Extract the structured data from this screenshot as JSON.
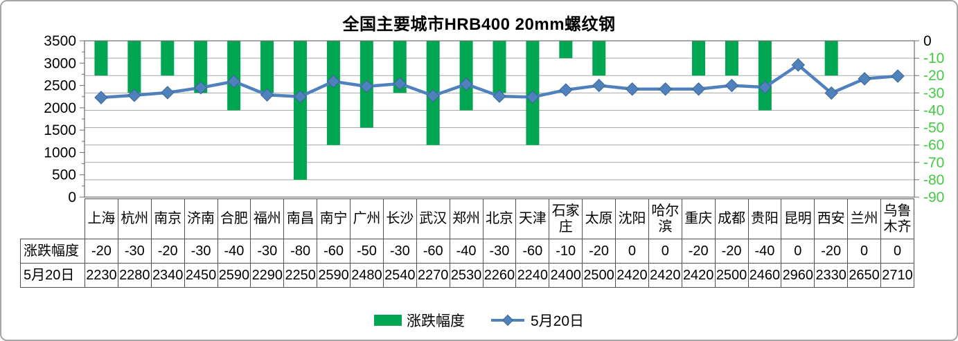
{
  "title": "全国主要城市HRB400 20mm螺纹钢",
  "chart_data": {
    "type": "combo-bar-line",
    "title": "全国主要城市HRB400 20mm螺纹钢",
    "categories": [
      "上海",
      "杭州",
      "南京",
      "济南",
      "合肥",
      "福州",
      "南昌",
      "南宁",
      "广州",
      "长沙",
      "武汉",
      "郑州",
      "北京",
      "天津",
      "石家庄",
      "太原",
      "沈阳",
      "哈尔滨",
      "重庆",
      "成都",
      "贵阳",
      "昆明",
      "西安",
      "兰州",
      "乌鲁木齐"
    ],
    "series": [
      {
        "name": "涨跌幅度",
        "type": "bar",
        "axis": "right",
        "color": "#00a651",
        "values": [
          -20,
          -30,
          -20,
          -30,
          -40,
          -30,
          -80,
          -60,
          -50,
          -30,
          -60,
          -40,
          -30,
          -60,
          -10,
          -20,
          0,
          0,
          -20,
          -20,
          -40,
          0,
          -20,
          0,
          0
        ]
      },
      {
        "name": "5月20日",
        "type": "line",
        "axis": "left",
        "color": "#4f81bd",
        "marker": "diamond",
        "values": [
          2230,
          2280,
          2340,
          2450,
          2590,
          2290,
          2250,
          2590,
          2480,
          2540,
          2270,
          2530,
          2260,
          2240,
          2400,
          2500,
          2420,
          2420,
          2420,
          2500,
          2460,
          2960,
          2330,
          2650,
          2710
        ]
      }
    ],
    "left_axis": {
      "min": 0,
      "max": 3500,
      "step": 500,
      "ticks": [
        "3500",
        "3000",
        "2500",
        "2000",
        "1500",
        "1000",
        "500",
        "0"
      ],
      "label_color": "#000000"
    },
    "right_axis": {
      "min": -90,
      "max": 0,
      "step": 10,
      "ticks": [
        "0",
        "-10",
        "-20",
        "-30",
        "-40",
        "-50",
        "-60",
        "-70",
        "-80",
        "-90"
      ],
      "label_color": "#44c944",
      "zero_label_color": "#000000"
    },
    "grid": true,
    "legend_position": "bottom",
    "data_table": true
  },
  "colors": {
    "bar_green": "#00a651",
    "line_blue": "#4f81bd",
    "marker_edge": "#3a6493",
    "grid": "#a8a8a8",
    "axis": "#6b6b6b",
    "table_border": "#4d4d4d",
    "right_axis_label": "#44c944",
    "outer_border": "#a6a6a6"
  }
}
